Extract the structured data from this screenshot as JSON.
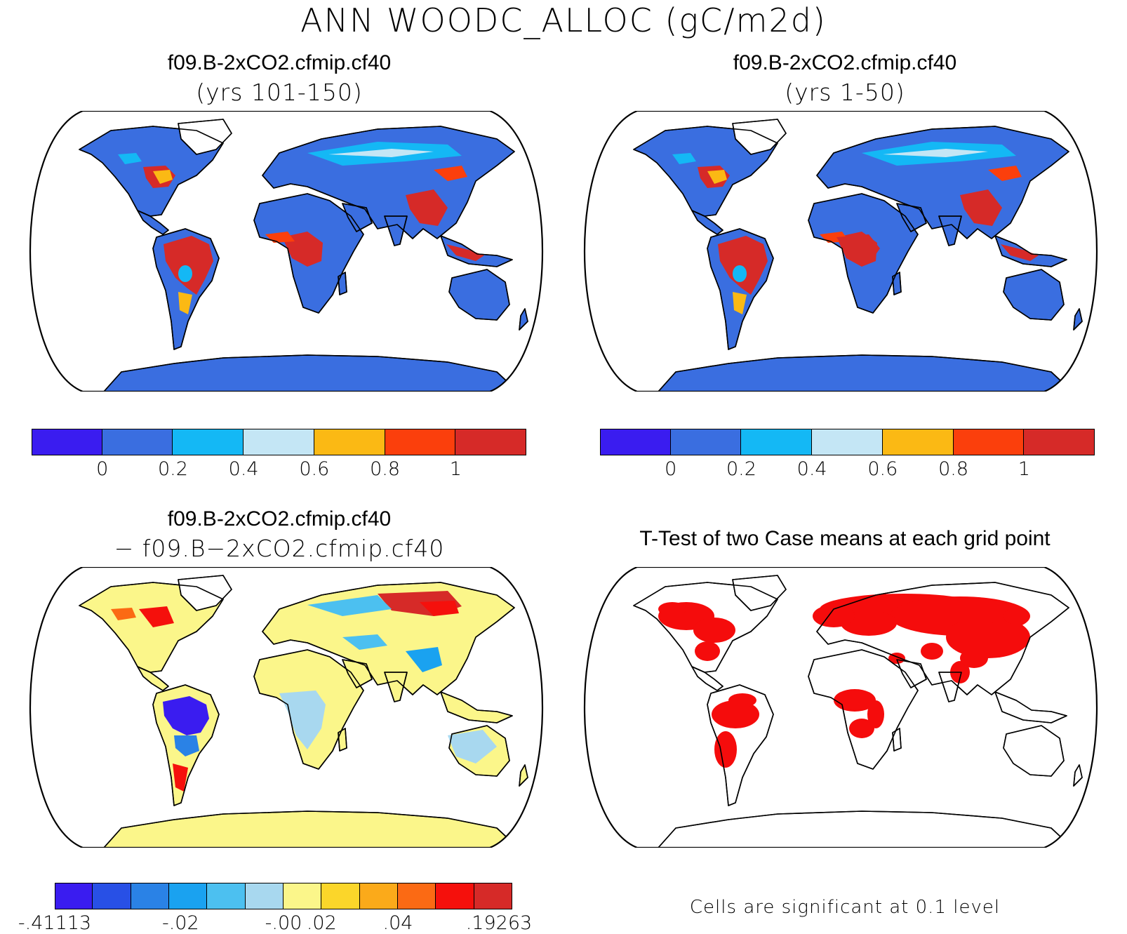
{
  "title": "ANN WOODC_ALLOC (gC/m2d)",
  "panels": [
    {
      "id": "case1",
      "title": "f09.B-2xCO2.cfmip.cf40",
      "subtitle": "(yrs 101-150)",
      "colorbar": {
        "colors": [
          "#3a1cf0",
          "#3a6ee0",
          "#14b8f5",
          "#c4e6f5",
          "#fbb914",
          "#fb3f0c",
          "#d62a28"
        ],
        "labels": [
          "0",
          "0.2",
          "0.4",
          "0.6",
          "0.8",
          "1"
        ]
      }
    },
    {
      "id": "case2",
      "title": "f09.B-2xCO2.cfmip.cf40",
      "subtitle": "(yrs 1-50)",
      "colorbar": {
        "colors": [
          "#3a1cf0",
          "#3a6ee0",
          "#14b8f5",
          "#c4e6f5",
          "#fbb914",
          "#fb3f0c",
          "#d62a28"
        ],
        "labels": [
          "0",
          "0.2",
          "0.4",
          "0.6",
          "0.8",
          "1"
        ]
      }
    },
    {
      "id": "difference",
      "title": "f09.B-2xCO2.cfmip.cf40",
      "subtitle": "− f09.B−2xCO2.cfmip.cf40",
      "colorbar": {
        "colors": [
          "#3a1cf0",
          "#2850e6",
          "#2a82e6",
          "#1aa2f0",
          "#4cc0f0",
          "#a8d8ef",
          "#fbf68a",
          "#fbd62a",
          "#fbaa1a",
          "#fb6a14",
          "#f5100c",
          "#d62a28"
        ],
        "labels": [
          "-.41113",
          "-.02",
          "-.00",
          ".02",
          ".04",
          ".19263"
        ]
      }
    },
    {
      "id": "ttest",
      "title": "T-Test of two Case means at each grid point",
      "note": "Cells are significant at 0.1 level",
      "significant_color": "#f50c0c"
    }
  ]
}
